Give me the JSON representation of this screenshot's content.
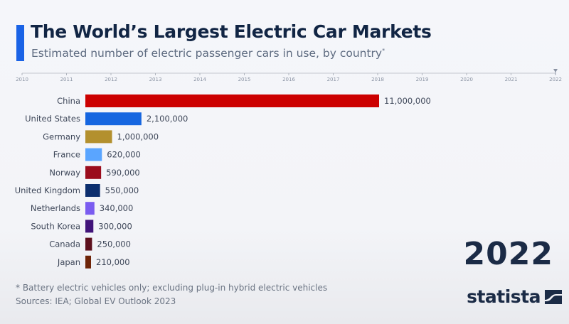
{
  "header": {
    "title": "The World’s Largest Electric Car Markets",
    "subtitle": "Estimated number of electric passenger cars in use, by country",
    "subtitle_marker": "*",
    "accent_color": "#1a63e6"
  },
  "timeline": {
    "years": [
      "2010",
      "2011",
      "2012",
      "2013",
      "2014",
      "2015",
      "2016",
      "2017",
      "2018",
      "2019",
      "2020",
      "2021",
      "2022"
    ],
    "current": "2022"
  },
  "chart_data": {
    "type": "bar",
    "orientation": "horizontal",
    "title": "The World’s Largest Electric Car Markets",
    "subtitle": "Estimated number of electric passenger cars in use, by country*",
    "year": "2022",
    "categories": [
      "China",
      "United States",
      "Germany",
      "France",
      "Norway",
      "United Kingdom",
      "Netherlands",
      "South Korea",
      "Canada",
      "Japan"
    ],
    "values": [
      11000000,
      2100000,
      1000000,
      620000,
      590000,
      550000,
      340000,
      300000,
      250000,
      210000
    ],
    "value_labels": [
      "11,000,000",
      "2,100,000",
      "1,000,000",
      "620,000",
      "590,000",
      "550,000",
      "340,000",
      "300,000",
      "250,000",
      "210,000"
    ],
    "colors": [
      "#cc0000",
      "#1666e0",
      "#b3902e",
      "#5aa5ff",
      "#9b0c1c",
      "#0c2e6e",
      "#7a5cf0",
      "#41147a",
      "#5c0f1c",
      "#6e2408"
    ],
    "xlabel": "",
    "ylabel": "",
    "grid": false,
    "legend": "none"
  },
  "year_display": "2022",
  "footer": {
    "footnote": "* Battery electric vehicles only; excluding plug-in hybrid electric vehicles",
    "source": "Sources: IEA; Global EV Outlook 2023"
  },
  "branding": {
    "logo_text": "statista",
    "logo_icon": "statista-logo-icon"
  }
}
